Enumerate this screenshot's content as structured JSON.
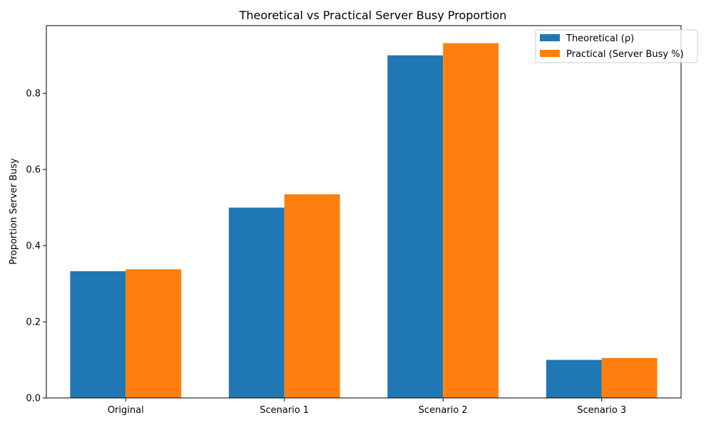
{
  "chart_data": {
    "type": "bar",
    "title": "Theoretical vs Practical Server Busy Proportion",
    "xlabel": "",
    "ylabel": "Proportion Server Busy",
    "categories": [
      "Original",
      "Scenario 1",
      "Scenario 2",
      "Scenario 3"
    ],
    "series": [
      {
        "name": "Theoretical (ρ)",
        "color": "#1f77b4",
        "values": [
          0.333,
          0.5,
          0.9,
          0.1
        ]
      },
      {
        "name": "Practical (Server Busy %)",
        "color": "#ff7f0e",
        "values": [
          0.338,
          0.535,
          0.932,
          0.105
        ]
      }
    ],
    "ylim": [
      0,
      0.978
    ],
    "yticks": [
      0.0,
      0.2,
      0.4,
      0.6,
      0.8
    ],
    "ytick_labels": [
      "0.0",
      "0.2",
      "0.4",
      "0.6",
      "0.8"
    ],
    "grid": false,
    "legend_position": "top-right"
  }
}
